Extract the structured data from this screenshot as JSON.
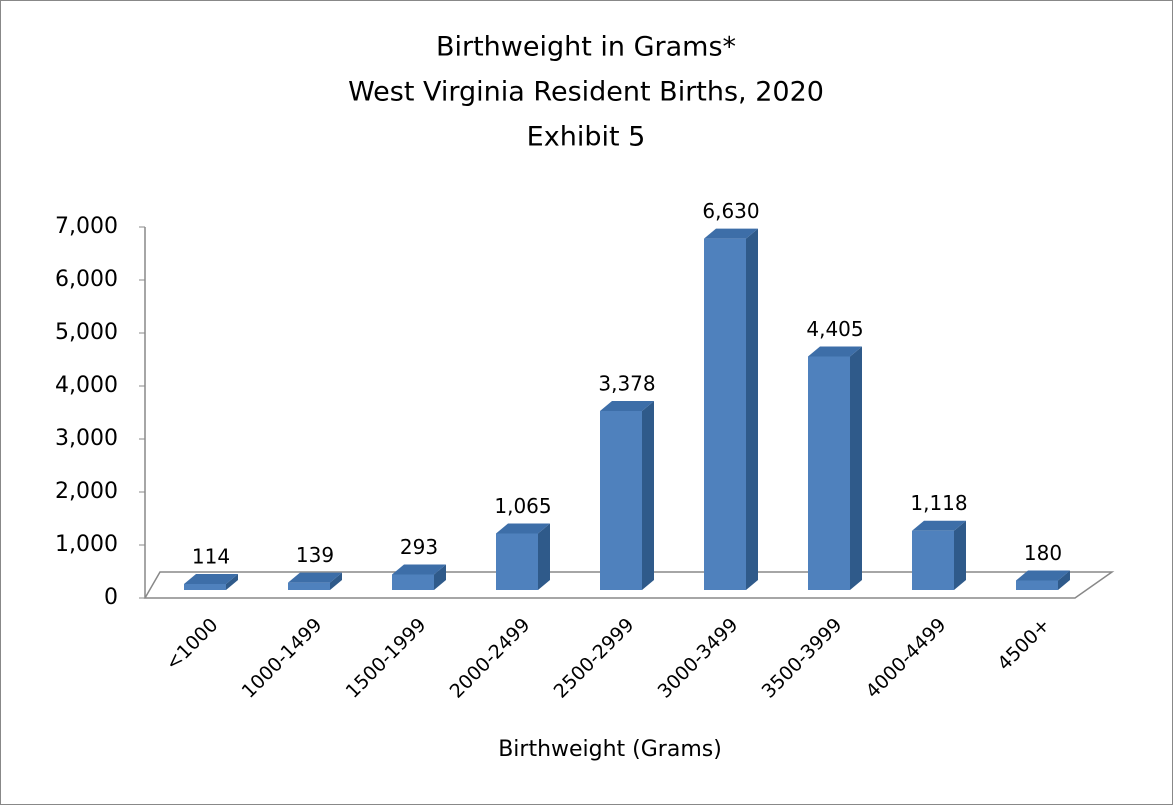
{
  "chart_data": {
    "type": "bar3d",
    "title": [
      "Birthweight in Grams*",
      "West Virginia Resident Births, 2020",
      "Exhibit 5"
    ],
    "x_label": "Birthweight (Grams)",
    "categories": [
      "<1000",
      "1000-1499",
      "1500-1999",
      "2000-2499",
      "2500-2999",
      "3000-3499",
      "3500-3999",
      "4000-4499",
      "4500+"
    ],
    "values": [
      114,
      139,
      293,
      1065,
      3378,
      6630,
      4405,
      1118,
      180
    ],
    "value_labels": [
      "114",
      "139",
      "293",
      "1,065",
      "3,378",
      "6,630",
      "4,405",
      "1,118",
      "180"
    ],
    "color": "#4f81bd",
    "ylim": [
      0,
      7000
    ],
    "yticks": [
      0,
      {
        "value": 1000,
        "label": "1,000"
      },
      {
        "value": 2000,
        "label": "2,000"
      },
      {
        "value": 3000,
        "label": "3,000"
      },
      {
        "value": 4000,
        "label": "4,000"
      },
      {
        "value": 5000,
        "label": "5,000"
      },
      {
        "value": 6000,
        "label": "6,000"
      },
      {
        "value": 7000,
        "label": "7,000"
      }
    ],
    "grid": false
  }
}
